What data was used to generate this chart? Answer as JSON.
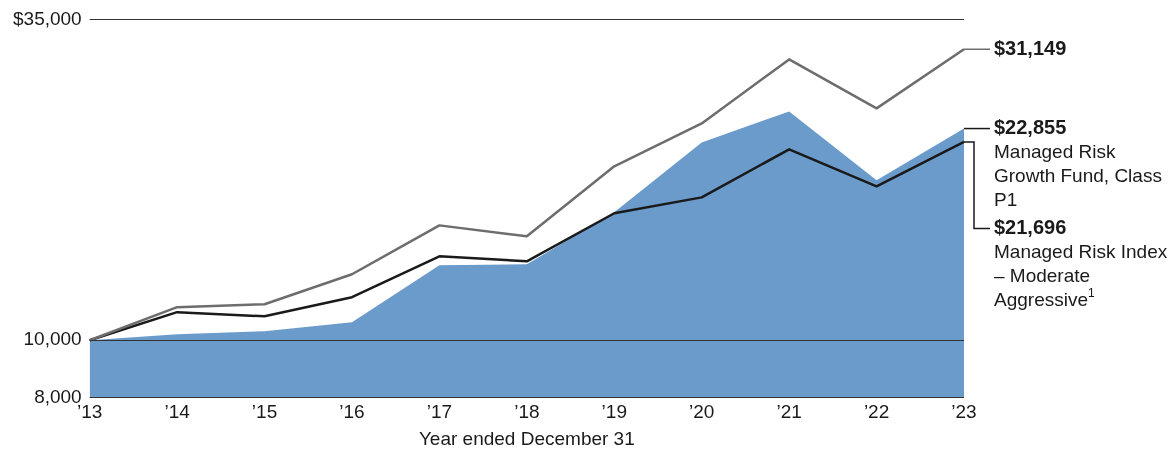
{
  "chart_data": {
    "type": "line",
    "xlabel": "Year ended December 31",
    "categories": [
      "’13",
      "’14",
      "’15",
      "’16",
      "’17",
      "’18",
      "’19",
      "’20",
      "’21",
      "’22",
      "’23"
    ],
    "series": [
      {
        "color": "#6d6d6d",
        "values": [
          10000,
          11380,
          11510,
          12940,
          15660,
          15010,
          19720,
          23320,
          29940,
          24730,
          31149
        ],
        "value_labels": [
          null,
          null,
          null,
          null,
          null,
          null,
          null,
          null,
          null,
          null,
          "$31,149"
        ]
      },
      {
        "name": "Managed Risk Growth Fund, Class P1",
        "type": "area",
        "color": "#6a9bcb",
        "values": [
          10000,
          10240,
          10360,
          10730,
          13400,
          13450,
          16480,
          21650,
          24440,
          18670,
          22855
        ],
        "value_labels": [
          null,
          null,
          null,
          null,
          null,
          null,
          null,
          null,
          null,
          null,
          "$22,855"
        ]
      },
      {
        "name": "Managed Risk Index – Moderate Aggressive$^{1}$",
        "color": "#1a1a1a",
        "values": [
          10000,
          11160,
          10980,
          11830,
          13880,
          13610,
          16420,
          17470,
          21070,
          18240,
          21696
        ],
        "value_labels": [
          null,
          null,
          null,
          null,
          null,
          null,
          null,
          null,
          null,
          null,
          "$21,696"
        ]
      }
    ],
    "log": "y",
    "ylim": [
      8000,
      35000
    ],
    "yticks": [
      {
        "value": 8000,
        "label": "8,000"
      },
      {
        "value": 10000,
        "label": "10,000"
      },
      {
        "value": 35000,
        "label": "$35,000"
      }
    ],
    "grid": "y",
    "legend": "right",
    "marker": "none",
    "line_style": "solid"
  }
}
